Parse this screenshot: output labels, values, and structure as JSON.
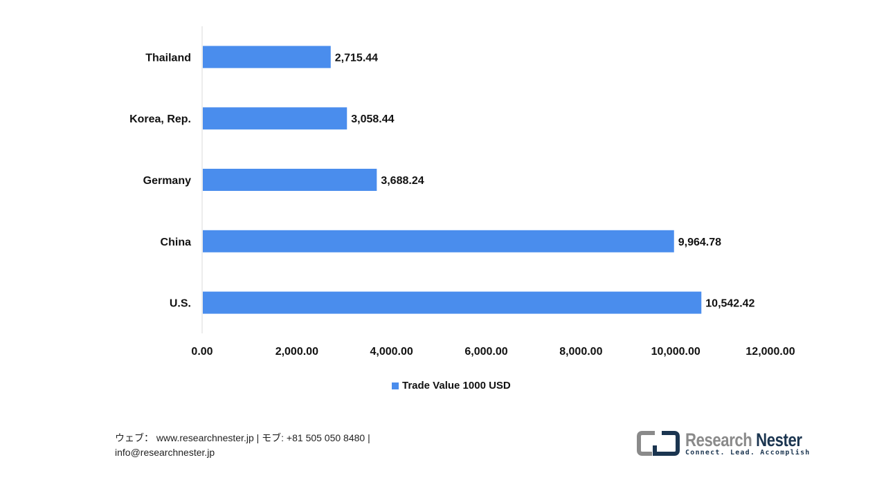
{
  "chart_data": {
    "type": "bar",
    "orientation": "horizontal",
    "categories": [
      "Thailand",
      "Korea, Rep.",
      "Germany",
      "China",
      "U.S."
    ],
    "series": [
      {
        "name": "Trade Value 1000 USD",
        "values": [
          2715.44,
          3058.44,
          3688.24,
          9964.78,
          10542.42
        ],
        "color": "#4a8ded"
      }
    ],
    "data_labels": [
      "2,715.44",
      "3,058.44",
      "3,688.24",
      "9,964.78",
      "10,542.42"
    ],
    "xlim": [
      0,
      12000
    ],
    "x_ticks": [
      "0.00",
      "2,000.00",
      "4,000.00",
      "6,000.00",
      "8,000.00",
      "10,000.00",
      "12,000.00"
    ],
    "grid": false,
    "legend_position": "bottom"
  },
  "footer": {
    "line1": "ウェブ：  www.researchnester.jp  | モブ: +81 505 050 8480 |",
    "line2": "info@researchnester.jp"
  },
  "logo": {
    "name_a": "Research ",
    "name_b": "Nester",
    "tagline": "Connect. Lead. Accomplish"
  }
}
